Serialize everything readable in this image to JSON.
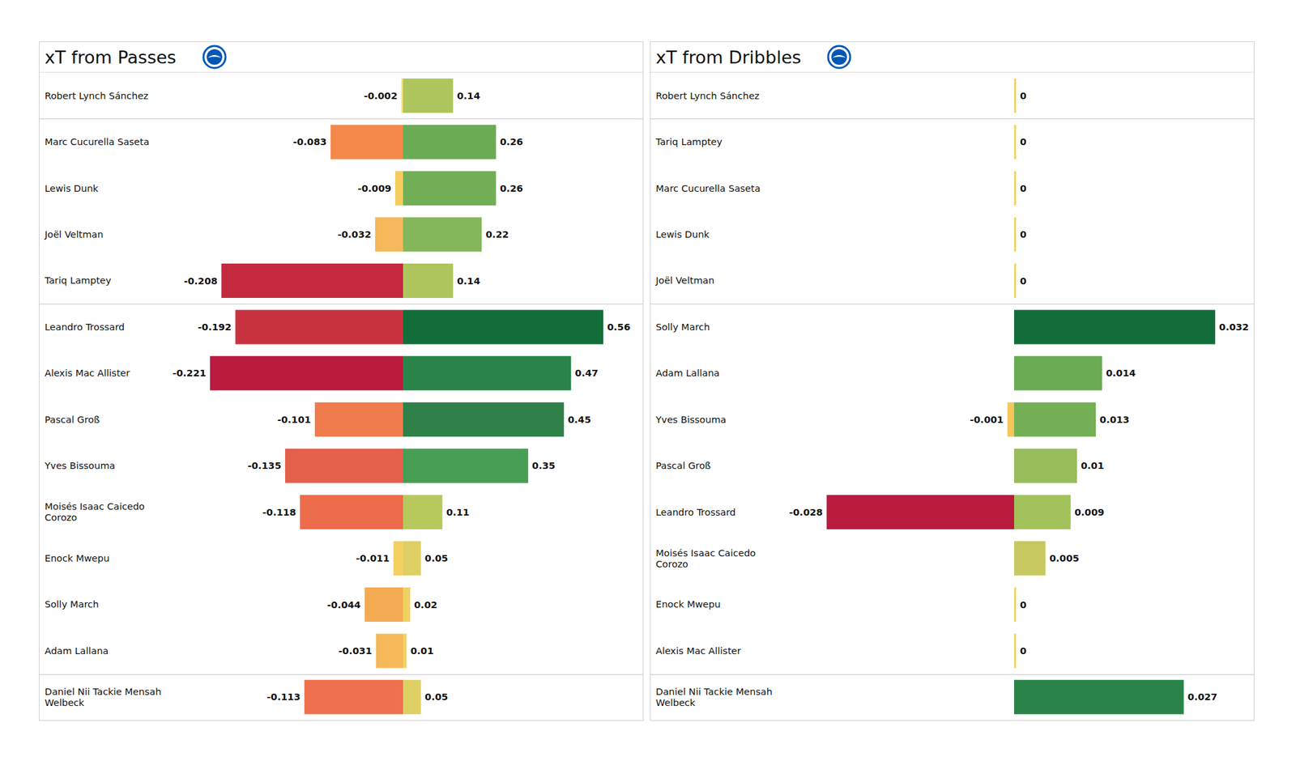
{
  "chart_data": [
    {
      "type": "bar",
      "title": "xT from Passes",
      "orientation": "horizontal",
      "data_labels": true,
      "tick_labels": "y",
      "categories": [
        "Robert Lynch Sánchez",
        "Marc Cucurella Saseta",
        "Lewis Dunk",
        "Joël Veltman",
        "Tariq Lamptey",
        "Leandro Trossard",
        "Alexis Mac Allister",
        "Pascal Groß",
        "Yves Bissouma",
        "Moisés Isaac Caicedo Corozo",
        "Enock Mwepu",
        "Solly March",
        "Adam Lallana",
        "Daniel Nii Tackie Mensah Welbeck"
      ],
      "series": [
        {
          "xlim": [
            -0.23,
            0
          ],
          "values": [
            -0.002,
            -0.083,
            -0.009,
            -0.032,
            -0.208,
            -0.192,
            -0.221,
            -0.101,
            -0.135,
            -0.118,
            -0.011,
            -0.044,
            -0.031,
            -0.113
          ],
          "colors": [
            "#f5e07a",
            "#f5894a",
            "#f4cd5e",
            "#f5b85a",
            "#c42a3f",
            "#c93340",
            "#b81b3d",
            "#f07b4d",
            "#e4604b",
            "#ec6c4c",
            "#f3d060",
            "#f4ab52",
            "#f5b95a",
            "#ee704c"
          ]
        },
        {
          "xlim": [
            0,
            0.58
          ],
          "values": [
            0.14,
            0.26,
            0.26,
            0.22,
            0.14,
            0.56,
            0.47,
            0.45,
            0.35,
            0.11,
            0.05,
            0.02,
            0.01,
            0.05
          ],
          "colors": [
            "#adc55c",
            "#6aab54",
            "#72ae56",
            "#83b759",
            "#adc55c",
            "#136d38",
            "#2a844a",
            "#2f8049",
            "#489e54",
            "#b7c85d",
            "#ddcf64",
            "#f0d060",
            "#f3d263",
            "#ddcf64"
          ]
        }
      ]
    },
    {
      "type": "bar",
      "title": "xT from Dribbles",
      "orientation": "horizontal",
      "data_labels": true,
      "tick_labels": "y",
      "categories": [
        "Robert Lynch Sánchez",
        "Tariq Lamptey",
        "Marc Cucurella Saseta",
        "Lewis Dunk",
        "Joël Veltman",
        "Solly March",
        "Adam Lallana",
        "Yves Bissouma",
        "Pascal Groß",
        "Leandro Trossard",
        "Moisés Isaac Caicedo Corozo",
        "Enock Mwepu",
        "Alexis Mac Allister",
        "Daniel Nii Tackie Mensah Welbeck"
      ],
      "series": [
        {
          "xlim": [
            -0.03,
            0
          ],
          "values": [
            0,
            0,
            0,
            0,
            0,
            0,
            0,
            -0.001,
            0,
            -0.028,
            0,
            0,
            0,
            0
          ],
          "colors": [
            "#f2d45c",
            "#f2d45c",
            "#f2d45c",
            "#f2d45c",
            "#f2d45c",
            "#f2d45c",
            "#f2d45c",
            "#f4c65c",
            "#f2d45c",
            "#b81b3d",
            "#f2d45c",
            "#f2d45c",
            "#f2d45c",
            "#f2d45c"
          ]
        },
        {
          "xlim": [
            0,
            0.033
          ],
          "values": [
            0,
            0,
            0,
            0,
            0,
            0.032,
            0.014,
            0.013,
            0.01,
            0.009,
            0.005,
            0,
            0,
            0.027
          ],
          "colors": [
            "#f2d45c",
            "#f2d45c",
            "#f2d45c",
            "#f2d45c",
            "#f2d45c",
            "#136d38",
            "#6aab54",
            "#74af56",
            "#97bc5b",
            "#a2c25c",
            "#c5c95f",
            "#f2d45c",
            "#f2d45c",
            "#2a844a"
          ]
        }
      ]
    }
  ]
}
